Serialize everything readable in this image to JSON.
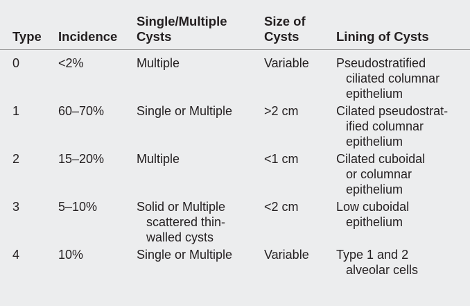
{
  "headers": {
    "type": "Type",
    "incidence": "Incidence",
    "cysts_line1": "Single/Multiple",
    "cysts_line2": "Cysts",
    "size_line1": "Size of",
    "size_line2": "Cysts",
    "lining": "Lining of Cysts"
  },
  "rows": [
    {
      "type": "0",
      "incidence": "<2%",
      "cysts": [
        "Multiple"
      ],
      "size": "Variable",
      "lining": [
        "Pseudostratified",
        "ciliated columnar",
        "epithelium"
      ]
    },
    {
      "type": "1",
      "incidence": "60–70%",
      "cysts": [
        "Single or Multiple"
      ],
      "size": ">2 cm",
      "lining": [
        "Cilated pseudostrat-",
        "ified columnar",
        "epithelium"
      ]
    },
    {
      "type": "2",
      "incidence": "15–20%",
      "cysts": [
        "Multiple"
      ],
      "size": "<1 cm",
      "lining": [
        "Cilated cuboidal",
        "or columnar",
        "epithelium"
      ]
    },
    {
      "type": "3",
      "incidence": "5–10%",
      "cysts": [
        "Solid or Multiple",
        "scattered thin-",
        "walled cysts"
      ],
      "size": "<2 cm",
      "lining": [
        "Low cuboidal",
        "epithelium"
      ]
    },
    {
      "type": "4",
      "incidence": "10%",
      "cysts": [
        "Single or Multiple"
      ],
      "size": "Variable",
      "lining": [
        "Type 1 and 2",
        "alveolar cells"
      ]
    }
  ]
}
